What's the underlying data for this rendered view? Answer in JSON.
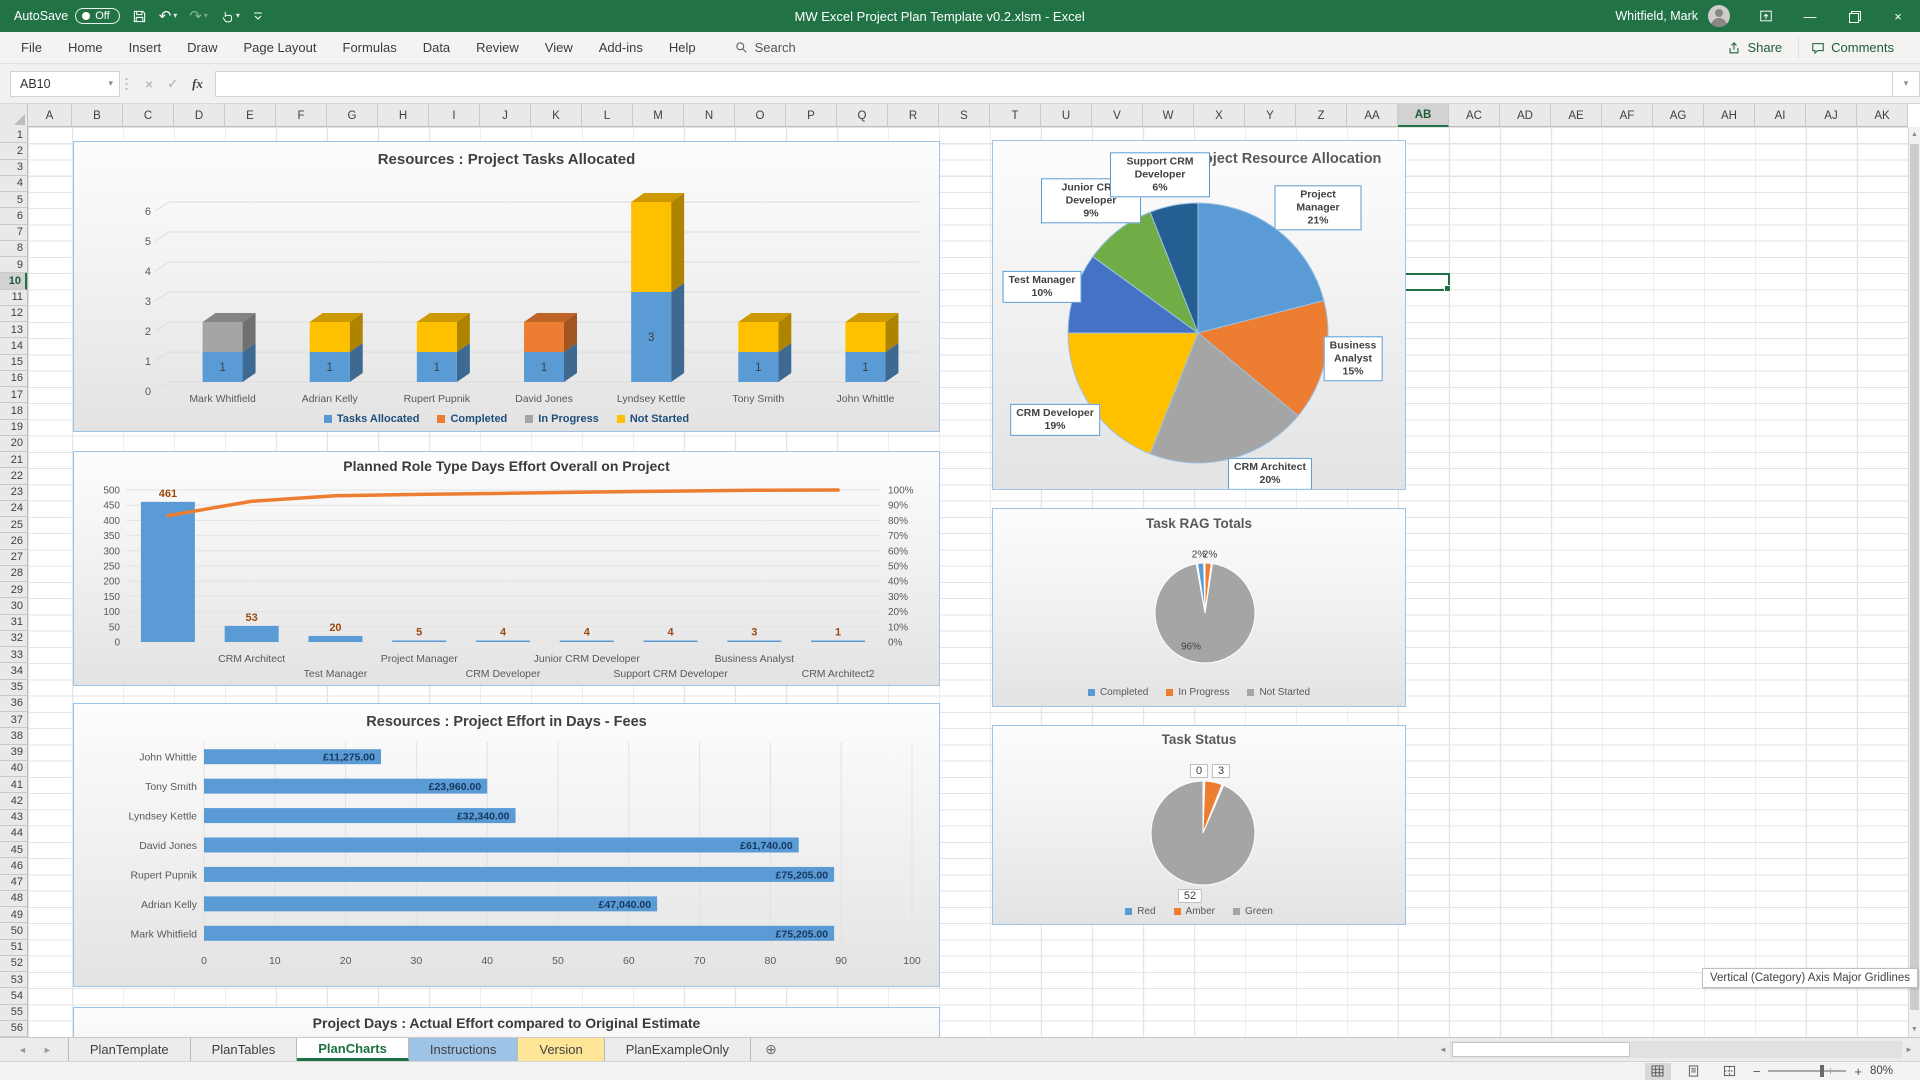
{
  "titlebar": {
    "autosave_label": "AutoSave",
    "autosave_state": "Off",
    "title": "MW Excel Project Plan Template v0.2.xlsm  -  Excel",
    "user": "Whitfield, Mark"
  },
  "ribbon": {
    "tabs": [
      "File",
      "Home",
      "Insert",
      "Draw",
      "Page Layout",
      "Formulas",
      "Data",
      "Review",
      "View",
      "Add-ins",
      "Help"
    ],
    "search_label": "Search",
    "share_label": "Share",
    "comments_label": "Comments"
  },
  "formula_bar": {
    "name_box": "AB10",
    "fx_label": "fx",
    "value": ""
  },
  "grid": {
    "columns": [
      "A",
      "B",
      "C",
      "D",
      "E",
      "F",
      "G",
      "H",
      "I",
      "J",
      "K",
      "L",
      "M",
      "N",
      "O",
      "P",
      "Q",
      "R",
      "S",
      "T",
      "U",
      "V",
      "W",
      "X",
      "Y",
      "Z",
      "AA",
      "AB",
      "AC",
      "AD",
      "AE",
      "AF",
      "AG",
      "AH",
      "AI",
      "AJ",
      "AK"
    ],
    "selected_column": "AB",
    "selected_row": 10,
    "row_count": 56,
    "selected_cell": "AB10"
  },
  "sheet_tabs": {
    "tabs": [
      {
        "label": "PlanTemplate",
        "style": "normal"
      },
      {
        "label": "PlanTables",
        "style": "normal"
      },
      {
        "label": "PlanCharts",
        "style": "active"
      },
      {
        "label": "Instructions",
        "style": "blue"
      },
      {
        "label": "Version",
        "style": "yellow"
      },
      {
        "label": "PlanExampleOnly",
        "style": "normal"
      }
    ],
    "add_sheet": "⊕"
  },
  "status_bar": {
    "zoom": "80%"
  },
  "tooltip": "Vertical (Category) Axis Major Gridlines",
  "chart_data": [
    {
      "id": "tasks_allocated",
      "type": "bar",
      "variant": "3d-stacked-column",
      "title": "Resources : Project Tasks Allocated",
      "categories": [
        "Mark Whitfield",
        "Adrian Kelly",
        "Rupert Pupnik",
        "David Jones",
        "Lyndsey Kettle",
        "Tony Smith",
        "John Whittle"
      ],
      "series": [
        {
          "name": "Tasks Allocated",
          "color": "#5B9BD5",
          "values": [
            1,
            1,
            1,
            1,
            3,
            1,
            1
          ]
        },
        {
          "name": "Completed",
          "color": "#ED7D31",
          "values": [
            0,
            0,
            0,
            1,
            0,
            0,
            0
          ]
        },
        {
          "name": "In Progress",
          "color": "#A5A5A5",
          "values": [
            1,
            0,
            0,
            0,
            0,
            0,
            0
          ]
        },
        {
          "name": "Not Started",
          "color": "#FFC000",
          "values": [
            0,
            1,
            1,
            0,
            3,
            1,
            1
          ]
        }
      ],
      "data_labels_series": 0,
      "ylim": [
        0,
        6
      ],
      "ytick_step": 1,
      "legend_position": "bottom"
    },
    {
      "id": "pareto",
      "type": "bar",
      "variant": "pareto",
      "title": "Planned Role Type Days Effort Overall on Project",
      "categories": [
        "",
        "CRM Architect",
        "Test Manager",
        "Project Manager",
        "CRM Developer",
        "Junior CRM Developer",
        "Support CRM Developer",
        "Business Analyst",
        "CRM Architect2"
      ],
      "values": [
        461,
        53,
        20,
        5,
        4,
        4,
        4,
        3,
        1
      ],
      "data_labels": [
        "461",
        "53",
        "20",
        "5",
        "4",
        "4",
        "4",
        "3",
        "1"
      ],
      "cumulative_pct": [
        83.1,
        92.6,
        96.2,
        97.1,
        97.8,
        98.6,
        99.3,
        99.8,
        100
      ],
      "bar_color": "#5B9BD5",
      "line_color": "#ED7D31",
      "ylim_left": [
        0,
        500
      ],
      "ytick_step_left": 50,
      "ylim_right": [
        0,
        100
      ],
      "ytick_step_right": 10
    },
    {
      "id": "fees",
      "type": "bar",
      "variant": "horizontal",
      "title": "Resources : Project Effort in Days - Fees",
      "categories": [
        "John Whittle",
        "Tony Smith",
        "Lyndsey Kettle",
        "David Jones",
        "Rupert Pupnik",
        "Adrian Kelly",
        "Mark Whitfield"
      ],
      "values": [
        25,
        40,
        44,
        84,
        89,
        64,
        89
      ],
      "data_labels": [
        "£11,275.00",
        "£23,960.00",
        "£32,340.00",
        "£61,740.00",
        "£75,205.00",
        "£47,040.00",
        "£75,205.00"
      ],
      "xlim": [
        0,
        100
      ],
      "xtick_step": 10,
      "bar_color": "#5B9BD5",
      "label_color": "#17375E"
    },
    {
      "id": "partial",
      "type": "bar",
      "title": "Project Days : Actual Effort compared to Original Estimate"
    },
    {
      "id": "allocation",
      "type": "pie",
      "title": "Project Resource Allocation",
      "slices": [
        {
          "label": "Project Manager",
          "pct": 21,
          "color": "#5B9BD5"
        },
        {
          "label": "Business Analyst",
          "pct": 15,
          "color": "#ED7D31"
        },
        {
          "label": "CRM Architect",
          "pct": 20,
          "color": "#A5A5A5"
        },
        {
          "label": "CRM Developer",
          "pct": 19,
          "color": "#FFC000"
        },
        {
          "label": "Test Manager",
          "pct": 10,
          "color": "#4472C4"
        },
        {
          "label": "Junior CRM Developer",
          "pct": 9,
          "color": "#70AD47"
        },
        {
          "label": "Support CRM Developer",
          "pct": 6,
          "color": "#255E91"
        }
      ]
    },
    {
      "id": "rag",
      "type": "pie",
      "title": "Task RAG Totals",
      "slices": [
        {
          "label": "Completed",
          "pct": 2,
          "color": "#5B9BD5"
        },
        {
          "label": "In Progress",
          "pct": 2,
          "color": "#ED7D31"
        },
        {
          "label": "Not Started",
          "pct": 96,
          "color": "#A5A5A5"
        }
      ],
      "legend": [
        "Completed",
        "In Progress",
        "Not Started"
      ]
    },
    {
      "id": "status",
      "type": "pie",
      "title": "Task Status",
      "slices": [
        {
          "label": "Red",
          "value": 0,
          "color": "#5B9BD5"
        },
        {
          "label": "Amber",
          "value": 3,
          "color": "#ED7D31"
        },
        {
          "label": "Green",
          "value": 52,
          "color": "#A5A5A5"
        }
      ],
      "data_labels": [
        "0",
        "3",
        "52"
      ],
      "legend": [
        "Red",
        "Amber",
        "Green"
      ]
    }
  ]
}
